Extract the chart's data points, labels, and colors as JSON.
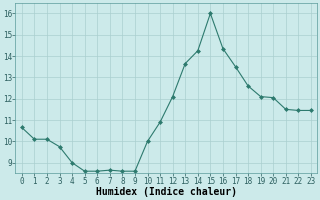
{
  "x": [
    0,
    1,
    2,
    3,
    4,
    5,
    6,
    7,
    8,
    9,
    10,
    11,
    12,
    13,
    14,
    15,
    16,
    17,
    18,
    19,
    20,
    21,
    22,
    23
  ],
  "y": [
    10.65,
    10.1,
    10.1,
    9.75,
    9.0,
    8.6,
    8.6,
    8.65,
    8.6,
    8.6,
    10.0,
    10.9,
    12.1,
    13.65,
    14.25,
    16.0,
    14.35,
    13.5,
    12.6,
    12.1,
    12.05,
    11.5,
    11.45,
    11.45
  ],
  "line_color": "#2d7a6e",
  "marker": "D",
  "marker_size": 2.0,
  "bg_color": "#cceaea",
  "grid_color": "#aacfcf",
  "xlabel": "Humidex (Indice chaleur)",
  "ylim": [
    8.5,
    16.5
  ],
  "xlim": [
    -0.5,
    23.5
  ],
  "yticks": [
    9,
    10,
    11,
    12,
    13,
    14,
    15,
    16
  ],
  "xticks": [
    0,
    1,
    2,
    3,
    4,
    5,
    6,
    7,
    8,
    9,
    10,
    11,
    12,
    13,
    14,
    15,
    16,
    17,
    18,
    19,
    20,
    21,
    22,
    23
  ],
  "tick_fontsize": 5.5,
  "xlabel_fontsize": 7.0,
  "linewidth": 0.8
}
